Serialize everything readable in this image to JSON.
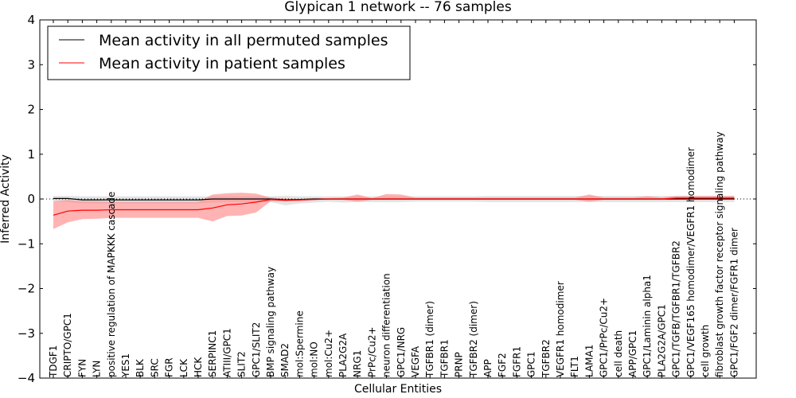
{
  "chart_data": {
    "type": "line",
    "title": "Glypican 1 network -- 76 samples",
    "xlabel": "Cellular Entities",
    "ylabel": "Inferred Activity",
    "ylim": [
      -4,
      4
    ],
    "yticks": [
      -4,
      -3,
      -2,
      -1,
      0,
      1,
      2,
      3,
      4
    ],
    "grid": false,
    "legend_position": "top-left",
    "categories": [
      "TDGF1",
      "CRIPTO/GPC1",
      "FYN",
      "LYN",
      "positive regulation of MAPKKK cascade",
      "YES1",
      "BLK",
      "SRC",
      "FGR",
      "LCK",
      "HCK",
      "SERPINC1",
      "ATIII/GPC1",
      "SLIT2",
      "GPC1/SLIT2",
      "BMP signaling pathway",
      "SMAD2",
      "mol:Spermine",
      "mol:NO",
      "mol:Cu2+",
      "PLA2G2A",
      "NRG1",
      "PrPc/Cu2+",
      "neuron differentiation",
      "GPC1/NRG",
      "VEGFA",
      "TGFBR1 (dimer)",
      "TGFBR1",
      "PRNP",
      "TGFBR2 (dimer)",
      "APP",
      "FGF2",
      "FGFR1",
      "GPC1",
      "TGFBR2",
      "VEGFR1 homodimer",
      "FLT1",
      "LAMA1",
      "GPC1/PrPc/Cu2+",
      "cell death",
      "APP/GPC1",
      "GPC1/Laminin alpha1",
      "PLA2G2A/GPC1",
      "GPC1/TGFB/TGFBR1/TGFBR2",
      "GPC1/VEGF165 homodimer/VEGFR1 homodimer",
      "cell growth",
      "fibroblast growth factor receptor signaling pathway",
      "GPC1/FGF2 dimer/FGFR1 dimer"
    ],
    "series": [
      {
        "name": "Mean activity in all permuted samples",
        "color": "#000000",
        "values": [
          0.01,
          0.01,
          -0.02,
          -0.02,
          -0.02,
          -0.02,
          -0.02,
          -0.02,
          -0.02,
          -0.02,
          -0.02,
          0.0,
          0.0,
          0.0,
          0.0,
          0.0,
          -0.02,
          -0.01,
          0.0,
          0.0,
          0.0,
          0.0,
          0.0,
          0.0,
          0.0,
          0.0,
          0.0,
          0.0,
          0.0,
          0.0,
          0.0,
          0.0,
          0.0,
          0.0,
          0.0,
          0.0,
          0.0,
          0.0,
          0.0,
          0.0,
          0.0,
          0.0,
          0.0,
          0.0,
          0.0,
          0.0,
          0.0,
          0.0
        ],
        "lower": [
          -0.05,
          -0.07,
          -0.1,
          -0.1,
          -0.1,
          -0.1,
          -0.1,
          -0.1,
          -0.1,
          -0.1,
          -0.1,
          -0.08,
          -0.07,
          -0.07,
          -0.07,
          -0.07,
          -0.14,
          -0.1,
          -0.08,
          -0.06,
          -0.08,
          -0.07,
          -0.07,
          -0.07,
          -0.07,
          -0.06,
          -0.06,
          -0.06,
          -0.06,
          -0.06,
          -0.07,
          -0.07,
          -0.07,
          -0.07,
          -0.07,
          -0.07,
          -0.07,
          -0.07,
          -0.07,
          -0.07,
          -0.07,
          -0.07,
          -0.07,
          -0.07,
          -0.07,
          -0.07,
          -0.07,
          -0.07
        ],
        "upper": [
          0.07,
          0.07,
          0.06,
          0.06,
          0.06,
          0.06,
          0.06,
          0.06,
          0.06,
          0.06,
          0.06,
          0.06,
          0.06,
          0.06,
          0.06,
          0.06,
          0.07,
          0.06,
          0.06,
          0.06,
          0.06,
          0.06,
          0.06,
          0.06,
          0.06,
          0.06,
          0.06,
          0.06,
          0.06,
          0.06,
          0.07,
          0.07,
          0.07,
          0.07,
          0.07,
          0.07,
          0.07,
          0.07,
          0.07,
          0.07,
          0.07,
          0.07,
          0.07,
          0.07,
          0.07,
          0.07,
          0.07,
          0.07
        ]
      },
      {
        "name": "Mean activity in patient samples",
        "color": "#ff0000",
        "band_color": "#ff8080",
        "values": [
          -0.36,
          -0.27,
          -0.25,
          -0.25,
          -0.24,
          -0.24,
          -0.24,
          -0.24,
          -0.24,
          -0.24,
          -0.24,
          -0.2,
          -0.13,
          -0.11,
          -0.07,
          -0.01,
          -0.03,
          -0.02,
          -0.01,
          0.0,
          0.0,
          0.0,
          0.0,
          0.0,
          0.0,
          0.0,
          0.0,
          0.0,
          0.0,
          0.0,
          0.0,
          0.0,
          0.0,
          0.0,
          0.0,
          0.0,
          0.0,
          0.0,
          0.0,
          0.0,
          0.0,
          0.0,
          0.0,
          0.02,
          0.02,
          0.02,
          0.02,
          0.02
        ],
        "lower": [
          -0.67,
          -0.52,
          -0.45,
          -0.44,
          -0.42,
          -0.42,
          -0.42,
          -0.42,
          -0.42,
          -0.42,
          -0.42,
          -0.5,
          -0.38,
          -0.37,
          -0.3,
          -0.05,
          -0.05,
          -0.05,
          -0.02,
          -0.02,
          -0.02,
          -0.06,
          -0.02,
          -0.02,
          -0.02,
          -0.02,
          -0.02,
          -0.02,
          -0.02,
          -0.02,
          -0.02,
          -0.02,
          -0.02,
          -0.02,
          -0.02,
          -0.02,
          -0.02,
          -0.06,
          -0.02,
          -0.02,
          -0.02,
          -0.02,
          -0.02,
          -0.01,
          -0.01,
          -0.01,
          -0.01,
          -0.01
        ],
        "upper": [
          -0.05,
          -0.02,
          -0.05,
          -0.05,
          -0.06,
          -0.06,
          -0.06,
          -0.06,
          -0.06,
          -0.06,
          -0.06,
          0.1,
          0.13,
          0.14,
          0.12,
          0.03,
          0.01,
          0.0,
          0.02,
          0.02,
          0.03,
          0.1,
          0.02,
          0.11,
          0.1,
          0.03,
          0.03,
          0.03,
          0.03,
          0.03,
          0.03,
          0.03,
          0.03,
          0.03,
          0.03,
          0.03,
          0.03,
          0.1,
          0.03,
          0.03,
          0.03,
          0.06,
          0.03,
          0.07,
          0.07,
          0.07,
          0.07,
          0.07
        ]
      }
    ]
  }
}
